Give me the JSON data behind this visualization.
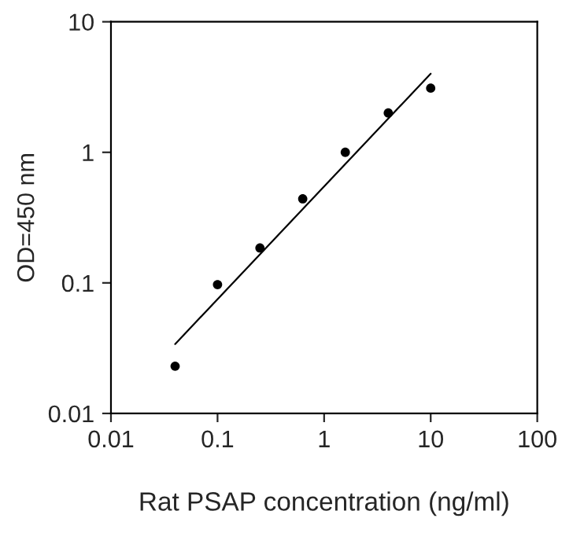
{
  "chart_data": {
    "type": "scatter",
    "xlabel": "Rat PSAP concentration (ng/ml)",
    "ylabel": "OD=450 nm",
    "log": "xy",
    "grid": false,
    "xlim": [
      0.01,
      100
    ],
    "xticks": [
      0.01,
      0.1,
      1,
      10,
      100
    ],
    "ylim": [
      0.01,
      10
    ],
    "yticks": [
      0.01,
      0.1,
      1,
      10
    ],
    "series": [
      {
        "marker": "circle",
        "color": "#000000",
        "x": [
          0.04,
          0.1,
          0.25,
          0.63,
          1.58,
          4.0,
          10
        ],
        "values": [
          0.023,
          0.097,
          0.185,
          0.44,
          1.0,
          2.0,
          3.1
        ]
      },
      {
        "type": "line",
        "marker": "none",
        "color": "#000000",
        "line_style": "solid",
        "x": [
          0.04,
          10
        ],
        "values": [
          0.034,
          4.0
        ]
      }
    ]
  }
}
